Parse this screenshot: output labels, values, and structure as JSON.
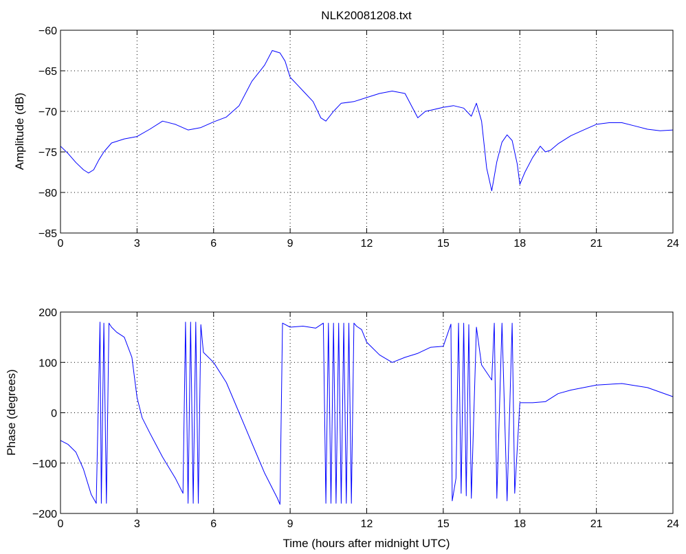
{
  "chart_data": [
    {
      "type": "line",
      "title": "NLK20081208.txt",
      "xlabel": "",
      "ylabel": "Amplitude (dB)",
      "xlim": [
        0,
        24
      ],
      "ylim": [
        -85,
        -60
      ],
      "xticks": [
        "0",
        "3",
        "6",
        "9",
        "12",
        "15",
        "18",
        "21",
        "24"
      ],
      "yticks": [
        "−60",
        "−65",
        "−70",
        "−75",
        "−80",
        "−85"
      ],
      "grid": true,
      "color": "#0000ff",
      "series": [
        {
          "x": [
            0,
            0.3,
            0.6,
            0.9,
            1.1,
            1.3,
            1.5,
            1.7,
            2.0,
            2.5,
            3.0,
            3.5,
            4.0,
            4.5,
            5.0,
            5.5,
            6.0,
            6.5,
            7.0,
            7.5,
            8.0,
            8.3,
            8.6,
            8.8,
            9.0,
            9.3,
            9.6,
            9.9,
            10.2,
            10.4,
            10.7,
            11.0,
            11.5,
            12.0,
            12.5,
            13.0,
            13.5,
            14.0,
            14.3,
            14.6,
            15.0,
            15.4,
            15.8,
            16.1,
            16.3,
            16.5,
            16.7,
            16.9,
            17.1,
            17.3,
            17.5,
            17.7,
            17.9,
            18.0,
            18.2,
            18.5,
            18.8,
            19.0,
            19.2,
            19.5,
            20.0,
            20.5,
            21.0,
            21.5,
            22.0,
            22.5,
            23.0,
            23.5,
            24.0
          ],
          "y": [
            -74.3,
            -75.2,
            -76.3,
            -77.2,
            -77.6,
            -77.2,
            -76.0,
            -75.0,
            -73.9,
            -73.4,
            -73.1,
            -72.2,
            -71.2,
            -71.6,
            -72.3,
            -72.0,
            -71.3,
            -70.7,
            -69.3,
            -66.3,
            -64.3,
            -62.5,
            -62.8,
            -63.8,
            -65.8,
            -66.8,
            -67.8,
            -68.8,
            -70.8,
            -71.2,
            -70.0,
            -69.0,
            -68.8,
            -68.3,
            -67.8,
            -67.5,
            -67.8,
            -70.8,
            -70.0,
            -69.8,
            -69.5,
            -69.3,
            -69.6,
            -70.6,
            -69.0,
            -71.2,
            -77.0,
            -79.8,
            -76.2,
            -73.8,
            -72.9,
            -73.6,
            -76.5,
            -79.0,
            -77.5,
            -75.7,
            -74.3,
            -75.0,
            -74.8,
            -74.0,
            -73.0,
            -72.3,
            -71.6,
            -71.4,
            -71.4,
            -71.8,
            -72.2,
            -72.4,
            -72.3
          ]
        }
      ]
    },
    {
      "type": "line",
      "title": "",
      "xlabel": "Time (hours after midnight UTC)",
      "ylabel": "Phase (degrees)",
      "xlim": [
        0,
        24
      ],
      "ylim": [
        -200,
        200
      ],
      "xticks": [
        "0",
        "3",
        "6",
        "9",
        "12",
        "15",
        "18",
        "21",
        "24"
      ],
      "yticks": [
        "200",
        "100",
        "0",
        "−100",
        "−200"
      ],
      "grid": true,
      "color": "#0000ff",
      "series": [
        {
          "x": [
            0,
            0.3,
            0.6,
            0.9,
            1.2,
            1.4,
            1.55,
            1.6,
            1.7,
            1.8,
            1.9,
            2.0,
            2.2,
            2.5,
            2.8,
            3.0,
            3.2,
            3.5,
            4.0,
            4.5,
            4.8,
            4.9,
            5.0,
            5.1,
            5.2,
            5.3,
            5.4,
            5.5,
            5.6,
            6.0,
            6.5,
            7.0,
            7.5,
            8.0,
            8.5,
            8.6,
            8.7,
            9.0,
            9.5,
            10.0,
            10.3,
            10.4,
            10.5,
            10.6,
            10.7,
            10.8,
            10.9,
            11.0,
            11.1,
            11.2,
            11.3,
            11.4,
            11.5,
            11.6,
            11.8,
            12.0,
            12.5,
            13.0,
            13.5,
            14.0,
            14.5,
            15.0,
            15.3,
            15.35,
            15.5,
            15.6,
            15.7,
            15.8,
            15.9,
            16.0,
            16.1,
            16.3,
            16.5,
            16.7,
            16.9,
            17.0,
            17.1,
            17.3,
            17.5,
            17.7,
            17.8,
            18.0,
            18.5,
            19.0,
            19.5,
            20.0,
            21.0,
            22.0,
            23.0,
            24.0
          ],
          "y": [
            -55,
            -63,
            -78,
            -112,
            -162,
            -180,
            180,
            -180,
            178,
            -180,
            178,
            170,
            160,
            150,
            110,
            30,
            -10,
            -40,
            -88,
            -130,
            -160,
            180,
            -180,
            180,
            -180,
            180,
            -180,
            175,
            120,
            100,
            60,
            0,
            -60,
            -120,
            -170,
            -182,
            178,
            170,
            172,
            168,
            178,
            -180,
            178,
            -180,
            178,
            -180,
            178,
            -180,
            178,
            -180,
            178,
            -180,
            178,
            172,
            165,
            140,
            115,
            100,
            110,
            118,
            130,
            132,
            176,
            -175,
            -130,
            178,
            -160,
            178,
            -165,
            175,
            -170,
            170,
            95,
            80,
            65,
            178,
            -170,
            178,
            -175,
            178,
            -160,
            20,
            20,
            22,
            38,
            45,
            55,
            58,
            50,
            32
          ]
        }
      ]
    }
  ]
}
